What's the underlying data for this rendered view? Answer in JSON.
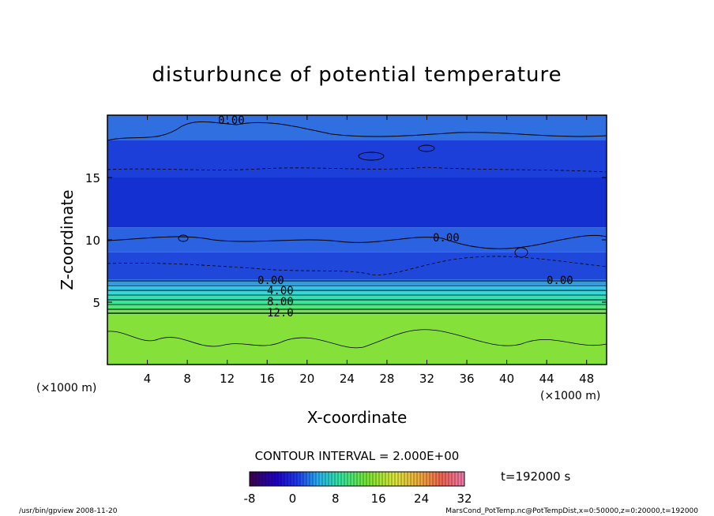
{
  "chart_data": {
    "type": "heatmap",
    "title": "disturbunce of potential temperature",
    "xlabel": "X-coordinate",
    "ylabel": "Z-coordinate",
    "x_unit": "(×1000 m)",
    "x_ticks": [
      4,
      8,
      12,
      16,
      20,
      24,
      28,
      32,
      36,
      40,
      44,
      48
    ],
    "y_ticks": [
      5,
      10,
      15
    ],
    "xlim": [
      0,
      50
    ],
    "ylim": [
      0,
      20
    ],
    "contour_interval_label": "CONTOUR INTERVAL = 2.000E+00",
    "contour_labels": [
      "0.00",
      "0.00",
      "0.00",
      "0.00",
      "4.00",
      "8.00",
      "12.0"
    ],
    "colorbar": {
      "ticks": [
        -8,
        0,
        8,
        16,
        24,
        32
      ],
      "range": [
        -8,
        32
      ]
    },
    "time_label": "t=192000 s",
    "bands": [
      {
        "z_bottom": 18,
        "z_top": 20,
        "value": -2,
        "color": "#2f6fe0"
      },
      {
        "z_bottom": 15,
        "z_top": 18,
        "value": -4,
        "color": "#1c3fd9"
      },
      {
        "z_bottom": 11,
        "z_top": 15,
        "value": -5,
        "color": "#1530d0"
      },
      {
        "z_bottom": 9,
        "z_top": 11,
        "value": -3,
        "color": "#2a62e2"
      },
      {
        "z_bottom": 6.8,
        "z_top": 9,
        "value": -4,
        "color": "#1f48da"
      },
      {
        "z_bottom": 6.4,
        "z_top": 6.8,
        "value": 0,
        "color": "#2f9be8"
      },
      {
        "z_bottom": 6.0,
        "z_top": 6.4,
        "value": 2,
        "color": "#35c4ea"
      },
      {
        "z_bottom": 5.6,
        "z_top": 6.0,
        "value": 4,
        "color": "#33d8d8"
      },
      {
        "z_bottom": 5.2,
        "z_top": 5.6,
        "value": 6,
        "color": "#33e0b8"
      },
      {
        "z_bottom": 4.8,
        "z_top": 5.2,
        "value": 8,
        "color": "#3ce39a"
      },
      {
        "z_bottom": 4.4,
        "z_top": 4.8,
        "value": 10,
        "color": "#4fe67a"
      },
      {
        "z_bottom": 4.0,
        "z_top": 4.4,
        "value": 12,
        "color": "#6fe255"
      },
      {
        "z_bottom": 0,
        "z_top": 4.0,
        "value": 13,
        "color": "#86e03a"
      }
    ]
  },
  "footer": {
    "left": "/usr/bin/gpview   2008-11-20",
    "right": "MarsCond_PotTemp.nc@PotTempDist,x=0:50000,z=0:20000,t=192000"
  }
}
